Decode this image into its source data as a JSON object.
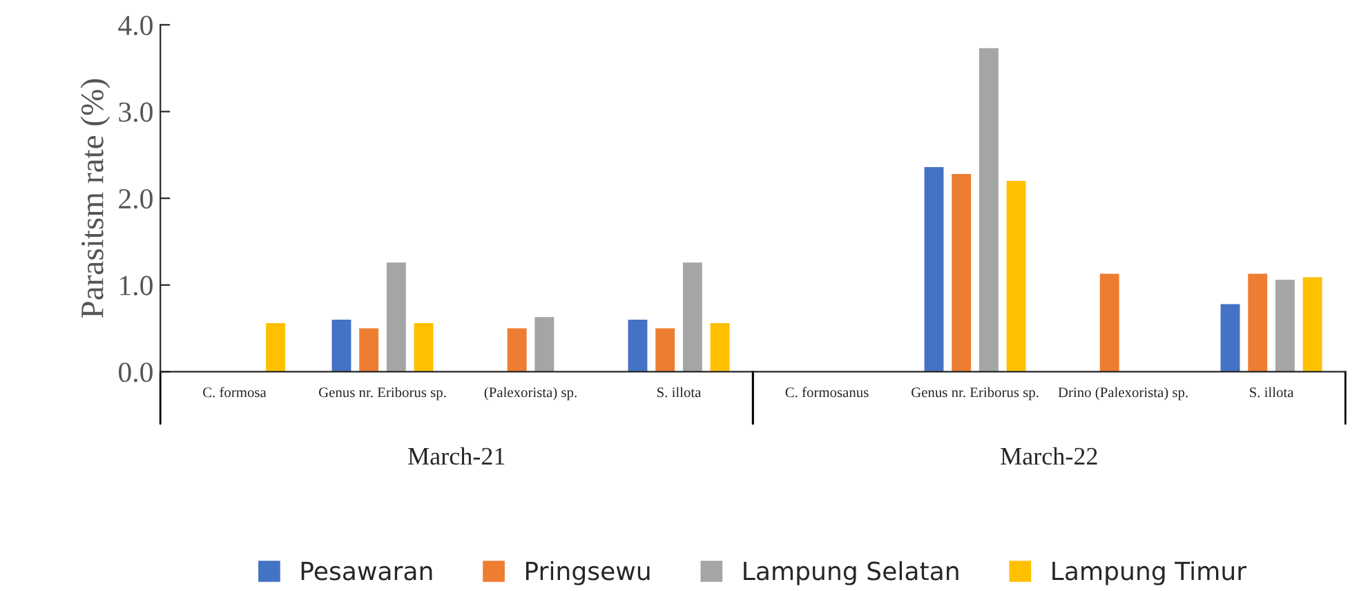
{
  "chart_data": {
    "type": "bar",
    "ylabel": "Parasitsm rate (%)",
    "categories": [
      "C. formosa",
      "Genus nr. Eriborus sp.",
      "(Palexorista) sp.",
      "S. illota",
      "C. formosanus",
      "Genus nr. Eriborus sp.",
      "Drino (Palexorista) sp.",
      "S. illota"
    ],
    "series": [
      {
        "name": "Pesawaran",
        "color": "#4472c4",
        "values": [
          null,
          0.6,
          null,
          0.6,
          null,
          2.36,
          null,
          0.78
        ]
      },
      {
        "name": "Pringsewu",
        "color": "#ed7d31",
        "values": [
          null,
          0.5,
          0.5,
          0.5,
          null,
          2.28,
          1.13,
          1.13
        ]
      },
      {
        "name": "Lampung Selatan",
        "color": "#a5a5a5",
        "values": [
          null,
          1.26,
          0.63,
          1.26,
          null,
          3.73,
          null,
          1.06
        ]
      },
      {
        "name": "Lampung Timur",
        "color": "#ffc000",
        "values": [
          0.56,
          0.56,
          null,
          0.56,
          null,
          2.2,
          null,
          1.09
        ]
      }
    ],
    "annotations": [
      "March-21",
      "March-22"
    ],
    "ylim": [
      0,
      4.0
    ],
    "yticks": [
      {
        "value": 0,
        "label": "0.0"
      },
      {
        "value": 1,
        "label": "1.0"
      },
      {
        "value": 2,
        "label": "2.0"
      },
      {
        "value": 3,
        "label": "3.0"
      },
      {
        "value": 4,
        "label": "4.0"
      }
    ],
    "grid": false,
    "legend": "bottom"
  }
}
